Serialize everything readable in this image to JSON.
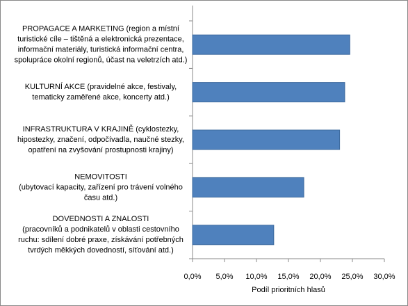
{
  "chart_data": {
    "type": "barh",
    "x_label": "Podíl prioritních hlasů",
    "categories": [
      [
        "PROPAGACE A MARKETING (region a místní",
        "turistické cíle – tištěná a elektronická prezentace,",
        "informační materiály, turistická informační centra,",
        "spolupráce okolní regionů, účast na veletrzích atd.)"
      ],
      [
        "KULTURNÍ AKCE (pravidelné akce, festivaly,",
        "tematicky zaměřené akce, koncerty atd.)"
      ],
      [
        "INFRASTRUKTURA V KRAJINĚ (cyklostezky,",
        "hipostezky, značení, odpočívadla, naučné stezky,",
        "opatření na zvyšování prostupnosti krajiny)"
      ],
      [
        "NEMOVITOSTI",
        "(ubytovací kapacity, zařízení pro trávení volného",
        "času atd.)"
      ],
      [
        "DOVEDNOSTI A ZNALOSTI",
        "(pracovníků a podnikatelů v oblasti cestovního",
        "ruchu: sdílení dobré praxe, získávání potřebných",
        "tvrdých měkkých dovedností, síťování atd.)"
      ]
    ],
    "values": [
      24.6,
      23.8,
      23.0,
      17.4,
      12.7
    ],
    "color": "#4f81bd",
    "xlim": [
      0,
      30
    ],
    "xticks": [
      {
        "value": 0,
        "label": "0,0%"
      },
      {
        "value": 5,
        "label": "5,0%"
      },
      {
        "value": 10,
        "label": "10,0%"
      },
      {
        "value": 15,
        "label": "15,0%"
      },
      {
        "value": 20,
        "label": "20,0%"
      },
      {
        "value": 25,
        "label": "25,0%"
      },
      {
        "value": 30,
        "label": "30,0%"
      }
    ],
    "grid": false
  }
}
